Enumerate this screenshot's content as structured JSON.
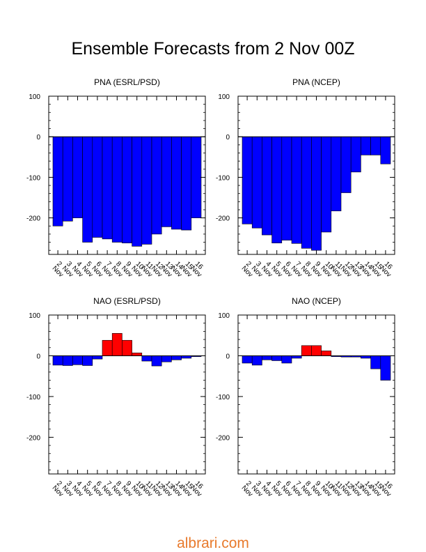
{
  "page": {
    "title": "Ensemble Forecasts from 2 Nov 00Z",
    "footer": "albrari.com"
  },
  "colors": {
    "negative": "#0000ff",
    "positive": "#ff0000",
    "footer": "#e87a2c"
  },
  "chart_data": [
    {
      "type": "bar",
      "title": "PNA (ESRL/PSD)",
      "categories": [
        "2 Nov",
        "3 Nov",
        "4 Nov",
        "5 Nov",
        "6 Nov",
        "7 Nov",
        "8 Nov",
        "9 Nov",
        "10 Nov",
        "11 Nov",
        "12 Nov",
        "13 Nov",
        "14 Nov",
        "15 Nov",
        "16 Nov"
      ],
      "values": [
        -220,
        -208,
        -200,
        -260,
        -248,
        -252,
        -260,
        -262,
        -270,
        -265,
        -240,
        -222,
        -228,
        -230,
        -200
      ],
      "ylim": [
        -290,
        100
      ],
      "yticks": [
        100,
        0,
        -100,
        -200
      ],
      "ytick_labels": [
        "100",
        "0",
        "-100",
        "-200"
      ]
    },
    {
      "type": "bar",
      "title": "PNA (NCEP)",
      "categories": [
        "2 Nov",
        "3 Nov",
        "4 Nov",
        "5 Nov",
        "6 Nov",
        "7 Nov",
        "8 Nov",
        "9 Nov",
        "10 Nov",
        "11 Nov",
        "12 Nov",
        "13 Nov",
        "14 Nov",
        "15 Nov",
        "16 Nov"
      ],
      "values": [
        -215,
        -225,
        -242,
        -262,
        -255,
        -263,
        -275,
        -280,
        -235,
        -183,
        -138,
        -87,
        -45,
        -45,
        -67
      ],
      "ylim": [
        -290,
        100
      ],
      "yticks": [
        100,
        0,
        -100,
        -200
      ],
      "ytick_labels": [
        "100",
        "0",
        "-100",
        "-200"
      ]
    },
    {
      "type": "bar",
      "title": "NAO (ESRL/PSD)",
      "categories": [
        "2 Nov",
        "3 Nov",
        "4 Nov",
        "5 Nov",
        "6 Nov",
        "7 Nov",
        "8 Nov",
        "9 Nov",
        "10 Nov",
        "11 Nov",
        "12 Nov",
        "13 Nov",
        "14 Nov",
        "15 Nov",
        "16 Nov"
      ],
      "values": [
        -23,
        -24,
        -22,
        -24,
        -8,
        38,
        55,
        38,
        7,
        -13,
        -25,
        -15,
        -10,
        -6,
        -2
      ],
      "ylim": [
        -290,
        100
      ],
      "yticks": [
        100,
        0,
        -100,
        -200
      ],
      "ytick_labels": [
        "100",
        "0",
        "-100",
        "-200"
      ]
    },
    {
      "type": "bar",
      "title": "NAO (NCEP)",
      "categories": [
        "2 Nov",
        "3 Nov",
        "4 Nov",
        "5 Nov",
        "6 Nov",
        "7 Nov",
        "8 Nov",
        "9 Nov",
        "10 Nov",
        "11 Nov",
        "12 Nov",
        "13 Nov",
        "14 Nov",
        "15 Nov",
        "16 Nov"
      ],
      "values": [
        -18,
        -23,
        -10,
        -12,
        -18,
        -6,
        25,
        25,
        12,
        -2,
        -3,
        -3,
        -6,
        -32,
        -60
      ],
      "ylim": [
        -290,
        100
      ],
      "yticks": [
        100,
        0,
        -100,
        -200
      ],
      "ytick_labels": [
        "100",
        "0",
        "-100",
        "-200"
      ]
    }
  ]
}
